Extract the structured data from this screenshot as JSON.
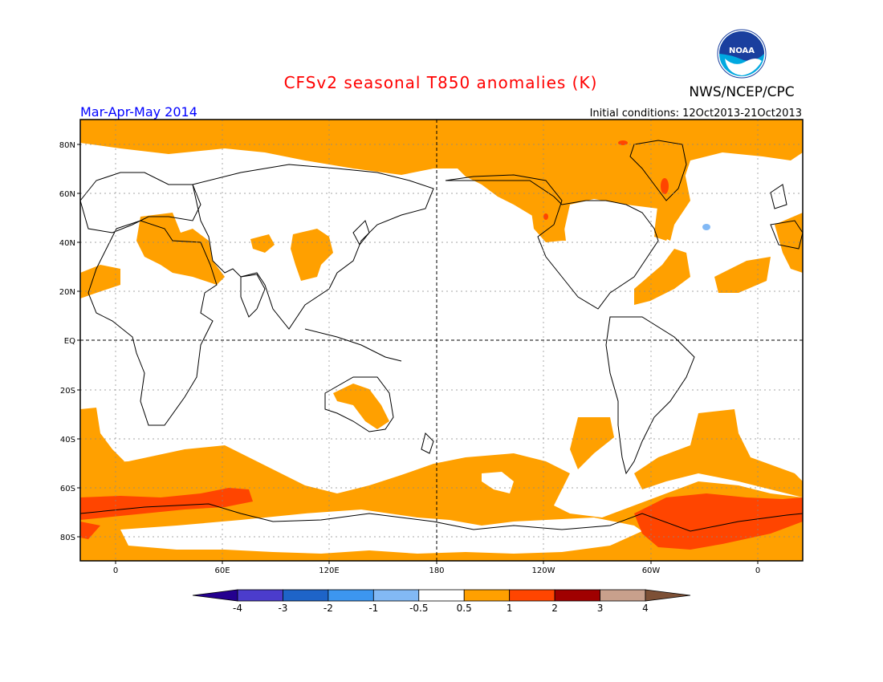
{
  "title": "CFSv2 seasonal T850 anomalies (K)",
  "season": "Mar-Apr-May 2014",
  "initial_conditions": "Initial conditions: 12Oct2013-21Oct2013",
  "agency": "NWS/NCEP/CPC",
  "logo_text": "NOAA",
  "lat_labels": [
    "80N",
    "60N",
    "40N",
    "20N",
    "EQ",
    "20S",
    "40S",
    "60S",
    "80S"
  ],
  "lon_labels": [
    "0",
    "60E",
    "120E",
    "180",
    "120W",
    "60W",
    "0"
  ],
  "colorbar": {
    "labels": [
      "-4",
      "-3",
      "-2",
      "-1",
      "-0.5",
      "0.5",
      "1",
      "2",
      "3",
      "4"
    ],
    "colors": [
      "#24008f",
      "#4b3ccc",
      "#1e64c8",
      "#3c96f0",
      "#82b9f5",
      "#ffffff",
      "#ffa000",
      "#ff4500",
      "#a00000",
      "#c8a08c",
      "#7d5036"
    ]
  },
  "map_colors": {
    "ocean_background": "#ffffff",
    "anomaly_0_5_to_1": "#ffa000",
    "anomaly_1_to_2": "#ff4500",
    "anomaly_neg_0_5": "#82b9f5",
    "title_color": "#ff0000",
    "season_color": "#0000ff"
  }
}
